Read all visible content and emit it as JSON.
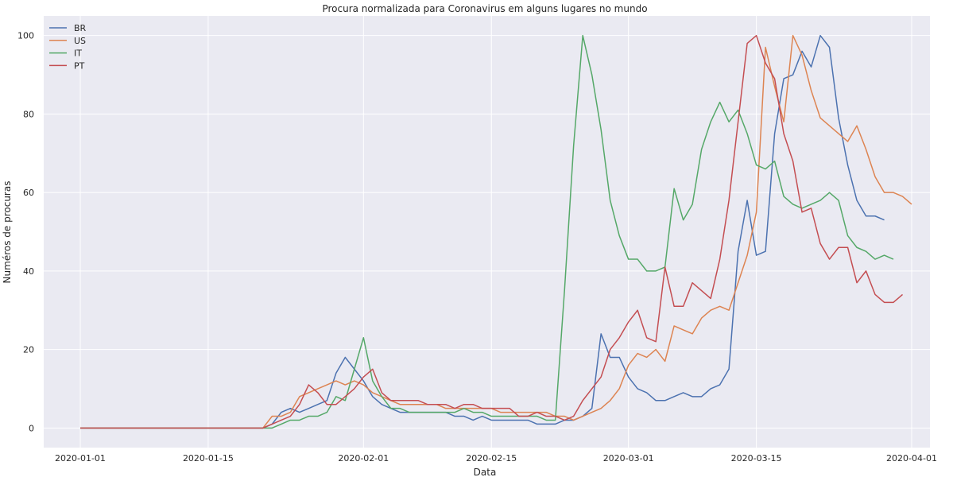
{
  "chart_data": {
    "type": "line",
    "title": "Procura normalizada para Coronavirus em alguns lugares no mundo",
    "xlabel": "Data",
    "ylabel": "Numéros de procuras",
    "x_start": "2020-01-01",
    "x_ticks": [
      "2020-01-01",
      "2020-01-15",
      "2020-02-01",
      "2020-02-15",
      "2020-03-01",
      "2020-03-15",
      "2020-04-01"
    ],
    "y_ticks": [
      0,
      20,
      40,
      60,
      80,
      100
    ],
    "xlim": [
      "2019-12-28",
      "2020-04-03"
    ],
    "ylim": [
      -5,
      105
    ],
    "grid": true,
    "legend_position": "top-left",
    "background_color": "#eaeaf2",
    "grid_color": "#ffffff",
    "series": [
      {
        "name": "BR",
        "color": "#4c72b0",
        "values": [
          0,
          0,
          0,
          0,
          0,
          0,
          0,
          0,
          0,
          0,
          0,
          0,
          0,
          0,
          0,
          0,
          0,
          0,
          0,
          0,
          0,
          1,
          4,
          5,
          4,
          5,
          6,
          7,
          14,
          18,
          15,
          12,
          8,
          6,
          5,
          4,
          4,
          4,
          4,
          4,
          4,
          3,
          3,
          2,
          3,
          2,
          2,
          2,
          2,
          2,
          1,
          1,
          1,
          2,
          2,
          3,
          5,
          24,
          18,
          18,
          13,
          10,
          9,
          7,
          7,
          8,
          9,
          8,
          8,
          10,
          11,
          15,
          45,
          58,
          44,
          45,
          75,
          89,
          90,
          96,
          92,
          100,
          97,
          79,
          67,
          58,
          54,
          54,
          53
        ]
      },
      {
        "name": "US",
        "color": "#dd8452",
        "values": [
          0,
          0,
          0,
          0,
          0,
          0,
          0,
          0,
          0,
          0,
          0,
          0,
          0,
          0,
          0,
          0,
          0,
          0,
          0,
          0,
          0,
          3,
          3,
          4,
          8,
          9,
          10,
          11,
          12,
          11,
          12,
          11,
          9,
          8,
          7,
          6,
          6,
          6,
          6,
          6,
          5,
          5,
          5,
          5,
          5,
          5,
          4,
          4,
          4,
          4,
          4,
          4,
          3,
          3,
          2,
          3,
          4,
          5,
          7,
          10,
          16,
          19,
          18,
          20,
          17,
          26,
          25,
          24,
          28,
          30,
          31,
          30,
          37,
          44,
          55,
          97,
          87,
          78,
          100,
          95,
          86,
          79,
          77,
          75,
          73,
          77,
          71,
          64,
          60,
          60,
          59,
          57
        ]
      },
      {
        "name": "IT",
        "color": "#55a868",
        "values": [
          0,
          0,
          0,
          0,
          0,
          0,
          0,
          0,
          0,
          0,
          0,
          0,
          0,
          0,
          0,
          0,
          0,
          0,
          0,
          0,
          0,
          0,
          1,
          2,
          2,
          3,
          3,
          4,
          8,
          7,
          15,
          23,
          12,
          8,
          5,
          5,
          4,
          4,
          4,
          4,
          4,
          4,
          5,
          4,
          4,
          3,
          3,
          3,
          3,
          3,
          3,
          2,
          2,
          35,
          72,
          100,
          90,
          76,
          58,
          49,
          43,
          43,
          40,
          40,
          41,
          61,
          53,
          57,
          71,
          78,
          83,
          78,
          81,
          75,
          67,
          66,
          68,
          59,
          57,
          56,
          57,
          58,
          60,
          58,
          49,
          46,
          45,
          43,
          44,
          43
        ]
      },
      {
        "name": "PT",
        "color": "#c44e52",
        "values": [
          0,
          0,
          0,
          0,
          0,
          0,
          0,
          0,
          0,
          0,
          0,
          0,
          0,
          0,
          0,
          0,
          0,
          0,
          0,
          0,
          0,
          1,
          2,
          3,
          6,
          11,
          9,
          6,
          6,
          8,
          10,
          13,
          15,
          9,
          7,
          7,
          7,
          7,
          6,
          6,
          6,
          5,
          6,
          6,
          5,
          5,
          5,
          5,
          3,
          3,
          4,
          3,
          3,
          2,
          3,
          7,
          10,
          13,
          20,
          23,
          27,
          30,
          23,
          22,
          41,
          31,
          31,
          37,
          35,
          33,
          43,
          58,
          78,
          98,
          100,
          93,
          89,
          75,
          68,
          55,
          56,
          47,
          43,
          46,
          46,
          37,
          40,
          34,
          32,
          32,
          34
        ]
      }
    ]
  }
}
